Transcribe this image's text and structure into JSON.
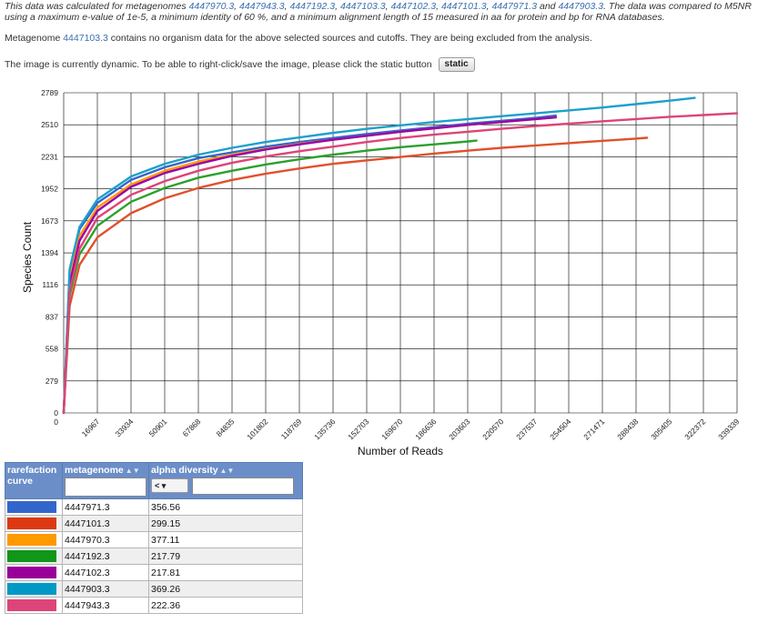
{
  "note": {
    "prefix": "This data was calculated for metagenomes ",
    "ids": [
      "4447970.3",
      "4447943.3",
      "4447192.3",
      "4447103.3",
      "4447102.3",
      "4447101.3",
      "4447971.3"
    ],
    "and": " and ",
    "last_id": "4447903.3",
    "suffix": ". The data was compared to M5NR using a maximum e-value of 1e-5, a minimum identity of 60 %, and a minimum alignment length of 15 measured in aa for protein and bp for RNA databases."
  },
  "excluded_msg": {
    "prefix": "Metagenome ",
    "id": "4447103.3",
    "suffix": " contains no organism data for the above selected sources and cutoffs. They are being excluded from the analysis."
  },
  "dynamic_msg": "The image is currently dynamic. To be able to right-click/save the image, please click the static button",
  "static_button": "static",
  "chart_data": {
    "type": "line",
    "xlabel": "Number of Reads",
    "ylabel": "Species Count",
    "xlim": [
      0,
      339339
    ],
    "ylim": [
      0,
      2789
    ],
    "x_ticks": [
      "0",
      "16967",
      "33934",
      "50901",
      "67868",
      "84835",
      "101802",
      "118769",
      "135736",
      "152703",
      "169670",
      "186636",
      "203603",
      "220570",
      "237537",
      "254504",
      "271471",
      "288438",
      "305405",
      "322372",
      "339339"
    ],
    "y_ticks": [
      "0",
      "279",
      "558",
      "837",
      "1116",
      "1394",
      "1673",
      "1952",
      "2231",
      "2510",
      "2789"
    ],
    "grid": true,
    "series": [
      {
        "name": "4447971.3",
        "color": "#3366cc",
        "points": [
          [
            0,
            0
          ],
          [
            3000,
            1230
          ],
          [
            8000,
            1600
          ],
          [
            17000,
            1830
          ],
          [
            34000,
            2030
          ],
          [
            51000,
            2140
          ],
          [
            68000,
            2220
          ],
          [
            85000,
            2270
          ],
          [
            102000,
            2320
          ],
          [
            119000,
            2360
          ],
          [
            136000,
            2395
          ],
          [
            153000,
            2430
          ],
          [
            170000,
            2460
          ],
          [
            187000,
            2490
          ],
          [
            204000,
            2520
          ],
          [
            221000,
            2545
          ],
          [
            238000,
            2570
          ],
          [
            248000,
            2590
          ]
        ]
      },
      {
        "name": "4447101.3",
        "color": "#e0512c",
        "points": [
          [
            0,
            0
          ],
          [
            3000,
            930
          ],
          [
            8000,
            1290
          ],
          [
            17000,
            1530
          ],
          [
            34000,
            1740
          ],
          [
            51000,
            1870
          ],
          [
            68000,
            1960
          ],
          [
            85000,
            2030
          ],
          [
            102000,
            2085
          ],
          [
            119000,
            2130
          ],
          [
            136000,
            2170
          ],
          [
            153000,
            2200
          ],
          [
            170000,
            2230
          ],
          [
            187000,
            2260
          ],
          [
            204000,
            2285
          ],
          [
            221000,
            2310
          ],
          [
            238000,
            2330
          ],
          [
            254500,
            2350
          ],
          [
            271000,
            2370
          ],
          [
            288400,
            2390
          ],
          [
            294000,
            2397
          ]
        ]
      },
      {
        "name": "4447970.3",
        "color": "#ff9900",
        "points": [
          [
            0,
            0
          ],
          [
            3000,
            1170
          ],
          [
            8000,
            1540
          ],
          [
            17000,
            1790
          ],
          [
            34000,
            1990
          ],
          [
            51000,
            2110
          ],
          [
            68000,
            2190
          ],
          [
            85000,
            2250
          ],
          [
            102000,
            2300
          ],
          [
            119000,
            2345
          ],
          [
            136000,
            2380
          ],
          [
            153000,
            2415
          ],
          [
            170000,
            2450
          ],
          [
            187000,
            2480
          ],
          [
            204000,
            2510
          ],
          [
            221000,
            2535
          ],
          [
            238000,
            2560
          ],
          [
            248000,
            2575
          ]
        ]
      },
      {
        "name": "4447192.3",
        "color": "#2ca02c",
        "points": [
          [
            0,
            0
          ],
          [
            3000,
            1020
          ],
          [
            8000,
            1380
          ],
          [
            17000,
            1630
          ],
          [
            34000,
            1840
          ],
          [
            51000,
            1960
          ],
          [
            68000,
            2050
          ],
          [
            85000,
            2110
          ],
          [
            102000,
            2165
          ],
          [
            119000,
            2210
          ],
          [
            136000,
            2250
          ],
          [
            153000,
            2285
          ],
          [
            170000,
            2315
          ],
          [
            187000,
            2340
          ],
          [
            204000,
            2365
          ],
          [
            208000,
            2372
          ]
        ]
      },
      {
        "name": "4447102.3",
        "color": "#9900aa",
        "points": [
          [
            0,
            0
          ],
          [
            3000,
            1120
          ],
          [
            8000,
            1500
          ],
          [
            17000,
            1760
          ],
          [
            34000,
            1970
          ],
          [
            51000,
            2090
          ],
          [
            68000,
            2170
          ],
          [
            85000,
            2240
          ],
          [
            102000,
            2295
          ],
          [
            119000,
            2340
          ],
          [
            136000,
            2380
          ],
          [
            153000,
            2415
          ],
          [
            170000,
            2450
          ],
          [
            187000,
            2480
          ],
          [
            204000,
            2510
          ],
          [
            221000,
            2535
          ],
          [
            238000,
            2560
          ],
          [
            248000,
            2575
          ]
        ]
      },
      {
        "name": "4447903.3",
        "color": "#1ca0cc",
        "points": [
          [
            0,
            0
          ],
          [
            3000,
            1250
          ],
          [
            8000,
            1620
          ],
          [
            17000,
            1860
          ],
          [
            34000,
            2060
          ],
          [
            51000,
            2170
          ],
          [
            68000,
            2250
          ],
          [
            85000,
            2310
          ],
          [
            102000,
            2360
          ],
          [
            119000,
            2400
          ],
          [
            136000,
            2440
          ],
          [
            153000,
            2475
          ],
          [
            170000,
            2505
          ],
          [
            187000,
            2535
          ],
          [
            204000,
            2560
          ],
          [
            221000,
            2585
          ],
          [
            238000,
            2610
          ],
          [
            254500,
            2635
          ],
          [
            271000,
            2660
          ],
          [
            288400,
            2690
          ],
          [
            305400,
            2720
          ],
          [
            318000,
            2745
          ]
        ]
      },
      {
        "name": "4447943.3",
        "color": "#dd4477",
        "points": [
          [
            0,
            0
          ],
          [
            3000,
            1060
          ],
          [
            8000,
            1430
          ],
          [
            17000,
            1700
          ],
          [
            34000,
            1900
          ],
          [
            51000,
            2020
          ],
          [
            68000,
            2110
          ],
          [
            85000,
            2180
          ],
          [
            102000,
            2235
          ],
          [
            119000,
            2280
          ],
          [
            136000,
            2320
          ],
          [
            153000,
            2360
          ],
          [
            170000,
            2395
          ],
          [
            187000,
            2425
          ],
          [
            204000,
            2450
          ],
          [
            221000,
            2475
          ],
          [
            238000,
            2500
          ],
          [
            254500,
            2520
          ],
          [
            271000,
            2540
          ],
          [
            288400,
            2560
          ],
          [
            305400,
            2580
          ],
          [
            322400,
            2595
          ],
          [
            339339,
            2610
          ]
        ]
      }
    ]
  },
  "table": {
    "headers": {
      "curve": "rarefaction curve",
      "metagenome": "metagenome",
      "alpha": "alpha diversity",
      "filter_select": "<"
    },
    "rows": [
      {
        "color": "#3366cc",
        "metagenome": "4447971.3",
        "alpha": "356.56"
      },
      {
        "color": "#dc3912",
        "metagenome": "4447101.3",
        "alpha": "299.15"
      },
      {
        "color": "#ff9900",
        "metagenome": "4447970.3",
        "alpha": "377.11"
      },
      {
        "color": "#109618",
        "metagenome": "4447192.3",
        "alpha": "217.79"
      },
      {
        "color": "#990099",
        "metagenome": "4447102.3",
        "alpha": "217.81"
      },
      {
        "color": "#0099c6",
        "metagenome": "4447903.3",
        "alpha": "369.26"
      },
      {
        "color": "#dd4477",
        "metagenome": "4447943.3",
        "alpha": "222.36"
      }
    ]
  }
}
